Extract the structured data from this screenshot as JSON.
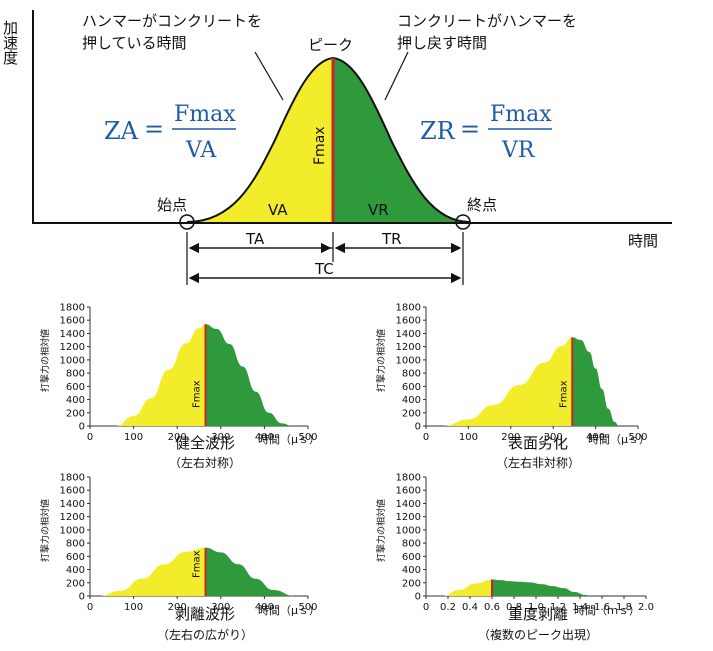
{
  "diagram": {
    "y_axis_label": "加速度",
    "x_axis_label": "時間",
    "left_note_line1": "ハンマーがコンクリートを",
    "left_note_line2": "押している時間",
    "peak_label": "ピーク",
    "right_note_line1": "コンクリートがハンマーを",
    "right_note_line2": "押し戻す時間",
    "fmax_vertical": "Fmax",
    "start_label": "始点",
    "end_label": "終点",
    "va_label": "VA",
    "vr_label": "VR",
    "ta_label": "TA",
    "tr_label": "TR",
    "tc_label": "TC",
    "formula_left": {
      "lhs": "ZA",
      "eq": "=",
      "num": "Fmax",
      "den": "VA"
    },
    "formula_right": {
      "lhs": "ZR",
      "eq": "=",
      "num": "Fmax",
      "den": "VR"
    },
    "colors": {
      "yellow": "#f2ec2b",
      "green": "#2e9a3c",
      "red_line": "#c8262b",
      "blue_text": "#1f5aa8"
    }
  },
  "chart_data": [
    {
      "type": "area",
      "title": "健全波形",
      "subtitle": "（左右対称）",
      "ylabel": "打撃力の相対値",
      "xlabel": "時間（μｓ）",
      "peak_label": "Fmax",
      "ylim": [
        0,
        1800
      ],
      "xlim": [
        0,
        500
      ],
      "yticks": [
        "0",
        "200",
        "400",
        "600",
        "800",
        "1000",
        "1200",
        "1400",
        "1600",
        "1800"
      ],
      "xticks": [
        "0",
        "100",
        "200",
        "300",
        "400",
        "500"
      ],
      "peak": {
        "x": 265,
        "y": 1540
      },
      "rise_points": [
        [
          60,
          0
        ],
        [
          100,
          150
        ],
        [
          140,
          420
        ],
        [
          180,
          850
        ],
        [
          220,
          1250
        ],
        [
          250,
          1480
        ],
        [
          265,
          1540
        ]
      ],
      "fall_points": [
        [
          265,
          1540
        ],
        [
          290,
          1470
        ],
        [
          320,
          1240
        ],
        [
          350,
          900
        ],
        [
          380,
          520
        ],
        [
          410,
          200
        ],
        [
          440,
          40
        ],
        [
          465,
          0
        ]
      ]
    },
    {
      "type": "area",
      "title": "表面劣化",
      "subtitle": "（左右非対称）",
      "ylabel": "打撃力の相対値",
      "xlabel": "時間（μｓ）",
      "peak_label": "Fmax",
      "ylim": [
        0,
        1800
      ],
      "xlim": [
        0,
        500
      ],
      "yticks": [
        "0",
        "200",
        "400",
        "600",
        "800",
        "1000",
        "1200",
        "1400",
        "1600",
        "1800"
      ],
      "xticks": [
        "0",
        "100",
        "200",
        "300",
        "400",
        "500"
      ],
      "peak": {
        "x": 345,
        "y": 1340
      },
      "rise_points": [
        [
          40,
          0
        ],
        [
          100,
          100
        ],
        [
          160,
          320
        ],
        [
          220,
          620
        ],
        [
          280,
          960
        ],
        [
          320,
          1210
        ],
        [
          345,
          1340
        ]
      ],
      "fall_points": [
        [
          345,
          1340
        ],
        [
          365,
          1300
        ],
        [
          385,
          1120
        ],
        [
          400,
          870
        ],
        [
          415,
          560
        ],
        [
          430,
          260
        ],
        [
          445,
          60
        ],
        [
          455,
          0
        ]
      ]
    },
    {
      "type": "area",
      "title": "剥離波形",
      "subtitle": "（左右の広がり）",
      "ylabel": "打撃力の相対値",
      "xlabel": "時間（μｓ）",
      "peak_label": "Fmax",
      "ylim": [
        0,
        1800
      ],
      "xlim": [
        0,
        500
      ],
      "yticks": [
        "0",
        "200",
        "400",
        "600",
        "800",
        "1000",
        "1200",
        "1400",
        "1600",
        "1800"
      ],
      "xticks": [
        "0",
        "100",
        "200",
        "300",
        "400",
        "500"
      ],
      "peak": {
        "x": 265,
        "y": 730
      },
      "rise_points": [
        [
          20,
          0
        ],
        [
          70,
          80
        ],
        [
          120,
          260
        ],
        [
          170,
          480
        ],
        [
          220,
          670
        ],
        [
          265,
          730
        ]
      ],
      "fall_points": [
        [
          265,
          730
        ],
        [
          300,
          660
        ],
        [
          340,
          480
        ],
        [
          380,
          260
        ],
        [
          420,
          90
        ],
        [
          470,
          0
        ]
      ]
    },
    {
      "type": "area",
      "title": "重度剥離",
      "subtitle": "（複数のピーク出現）",
      "ylabel": "打撃力の相対値",
      "xlabel": "時間（ｍｓ）",
      "peak_label": "",
      "ylim": [
        0,
        1800
      ],
      "xlim": [
        0,
        2.0
      ],
      "yticks": [
        "0",
        "200",
        "400",
        "600",
        "800",
        "1000",
        "1200",
        "1400",
        "1600",
        "1800"
      ],
      "xticks": [
        "0",
        "0.2",
        "0.4",
        "0.6",
        "0.8",
        "1.0",
        "1.2",
        "1.4",
        "1.6",
        "1.8",
        "2.0"
      ],
      "peak": {
        "x": 0.6,
        "y": 250
      },
      "rise_points": [
        [
          0.15,
          0
        ],
        [
          0.3,
          90
        ],
        [
          0.45,
          190
        ],
        [
          0.6,
          250
        ]
      ],
      "fall_points": [
        [
          0.6,
          250
        ],
        [
          0.68,
          240
        ],
        [
          0.75,
          225
        ],
        [
          0.85,
          215
        ],
        [
          0.95,
          205
        ],
        [
          1.05,
          180
        ],
        [
          1.15,
          150
        ],
        [
          1.25,
          120
        ],
        [
          1.35,
          60
        ],
        [
          1.45,
          15
        ],
        [
          1.5,
          0
        ]
      ]
    }
  ]
}
